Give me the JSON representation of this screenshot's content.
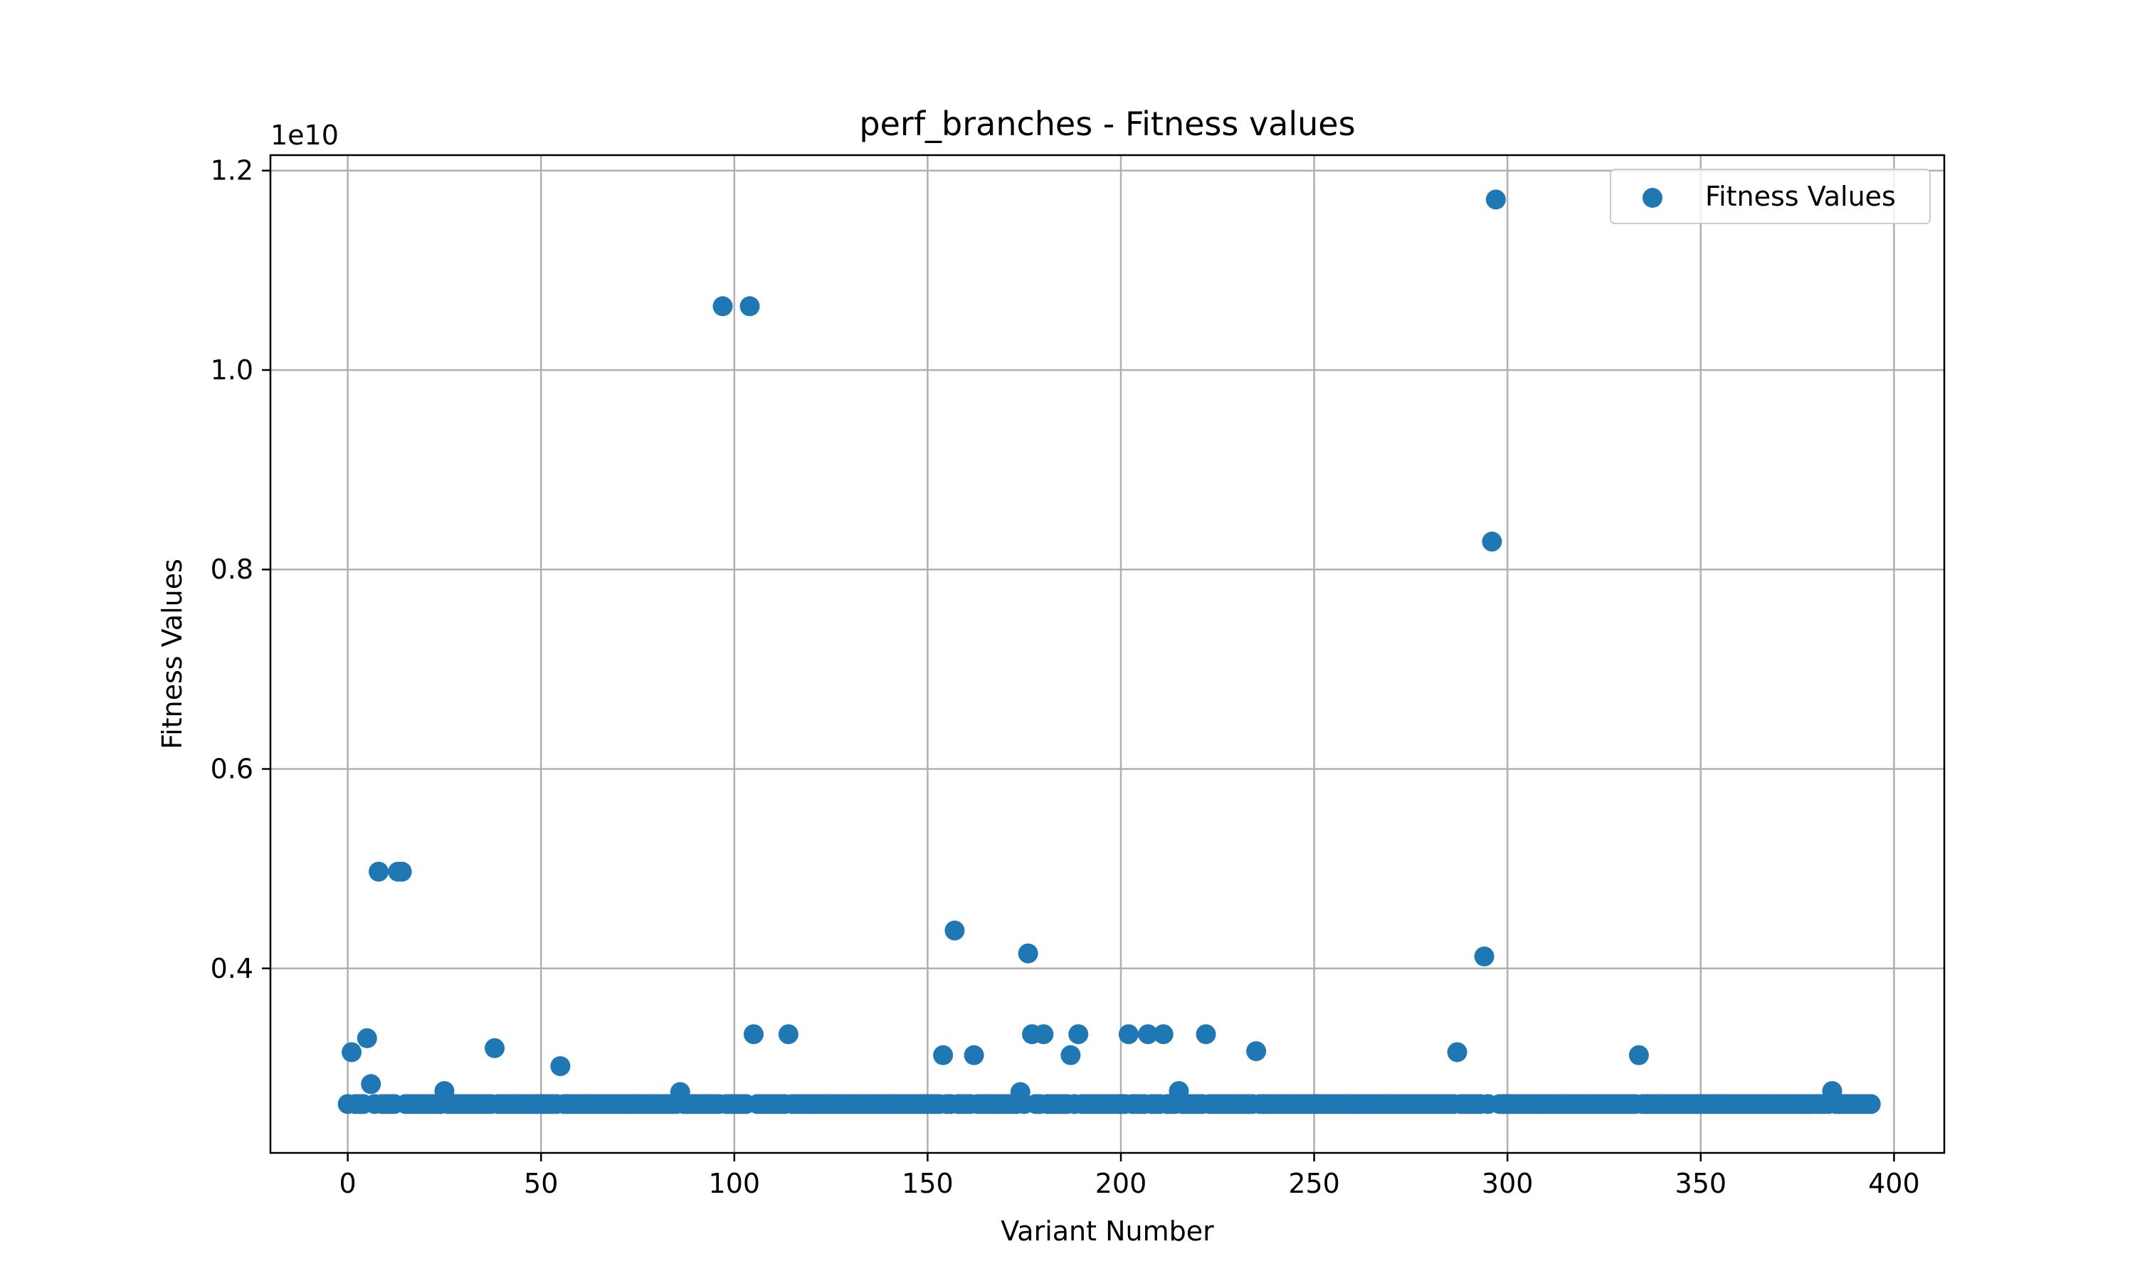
{
  "chart_data": {
    "type": "scatter",
    "title": "perf_branches - Fitness values",
    "xlabel": "Variant Number",
    "ylabel": "Fitness Values",
    "y_offset_label": "1e10",
    "xlim": [
      -20,
      413
    ],
    "ylim": [
      0.215,
      1.2155
    ],
    "x_ticks": [
      0,
      50,
      100,
      150,
      200,
      250,
      300,
      350,
      400
    ],
    "y_ticks": [
      0.4,
      0.6,
      0.8,
      1.0,
      1.2
    ],
    "x_tick_labels": [
      "0",
      "50",
      "100",
      "150",
      "200",
      "250",
      "300",
      "350",
      "400"
    ],
    "y_tick_labels": [
      "0.4",
      "0.6",
      "0.8",
      "1.0",
      "1.2"
    ],
    "grid": true,
    "legend": {
      "position": "top-right",
      "entries": [
        "Fitness Values"
      ]
    },
    "color": "#1f77b4",
    "baseline_y": 0.264,
    "baseline_x_range": [
      0,
      394
    ],
    "series": [
      {
        "name": "Fitness Values",
        "points": [
          [
            1,
            0.316
          ],
          [
            5,
            0.33
          ],
          [
            6,
            0.284
          ],
          [
            8,
            0.497
          ],
          [
            13,
            0.497
          ],
          [
            14,
            0.497
          ],
          [
            25,
            0.277
          ],
          [
            38,
            0.32
          ],
          [
            55,
            0.302
          ],
          [
            86,
            0.276
          ],
          [
            97,
            1.064
          ],
          [
            104,
            1.064
          ],
          [
            105,
            0.334
          ],
          [
            114,
            0.334
          ],
          [
            154,
            0.313
          ],
          [
            157,
            0.438
          ],
          [
            162,
            0.313
          ],
          [
            174,
            0.276
          ],
          [
            176,
            0.415
          ],
          [
            177,
            0.334
          ],
          [
            180,
            0.334
          ],
          [
            187,
            0.313
          ],
          [
            189,
            0.334
          ],
          [
            202,
            0.334
          ],
          [
            207,
            0.334
          ],
          [
            211,
            0.334
          ],
          [
            215,
            0.277
          ],
          [
            222,
            0.334
          ],
          [
            235,
            0.317
          ],
          [
            287,
            0.316
          ],
          [
            294,
            0.412
          ],
          [
            296,
            0.828
          ],
          [
            297,
            1.171
          ],
          [
            334,
            0.313
          ],
          [
            384,
            0.277
          ]
        ]
      }
    ]
  }
}
